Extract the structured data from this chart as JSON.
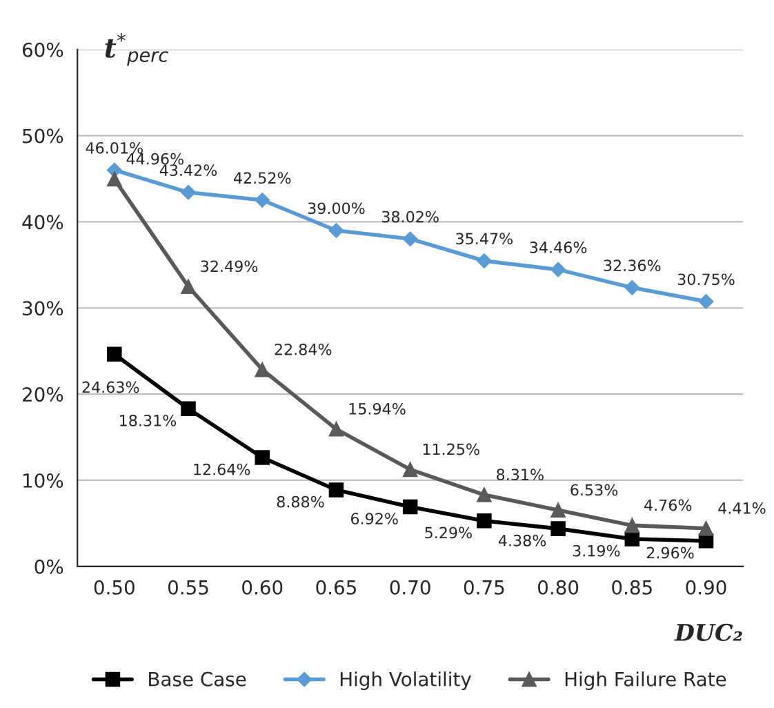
{
  "chart_data": {
    "type": "line",
    "title": "t$^{*}$$_{perc}$",
    "xlabel": "DUC₂",
    "categories": [
      "0.50",
      "0.55",
      "0.60",
      "0.65",
      "0.70",
      "0.75",
      "0.80",
      "0.85",
      "0.90"
    ],
    "series": [
      {
        "name": "Base Case",
        "color": "#000000",
        "marker": "square",
        "values": [
          24.63,
          18.31,
          12.64,
          8.88,
          6.92,
          5.29,
          4.38,
          3.19,
          2.96
        ],
        "value_labels": [
          "24.63%",
          "18.31%",
          "12.64%",
          "8.88%",
          "6.92%",
          "5.29%",
          "4.38%",
          "3.19%",
          "2.96%"
        ]
      },
      {
        "name": "High Volatility",
        "color": "#5b9bd5",
        "marker": "diamond",
        "values": [
          46.01,
          43.42,
          42.52,
          39.0,
          38.02,
          35.47,
          34.46,
          32.36,
          30.75
        ],
        "value_labels": [
          "46.01%",
          "43.42%",
          "42.52%",
          "39.00%",
          "38.02%",
          "35.47%",
          "34.46%",
          "32.36%",
          "30.75%"
        ]
      },
      {
        "name": "High Failure Rate",
        "color": "#595959",
        "marker": "triangle",
        "values": [
          44.96,
          32.49,
          22.84,
          15.94,
          11.25,
          8.31,
          6.53,
          4.76,
          4.41
        ],
        "value_labels": [
          "44.96%",
          "32.49%",
          "22.84%",
          "15.94%",
          "11.25%",
          "8.31%",
          "6.53%",
          "4.76%",
          "4.41%"
        ]
      }
    ],
    "ylim": [
      0,
      60
    ],
    "yticks": [
      {
        "value": 0,
        "label": "0%"
      },
      {
        "value": 10,
        "label": "10%"
      },
      {
        "value": 20,
        "label": "20%"
      },
      {
        "value": 30,
        "label": "30%"
      },
      {
        "value": 40,
        "label": "40%"
      },
      {
        "value": 50,
        "label": "50%"
      },
      {
        "value": 60,
        "label": "60%"
      }
    ],
    "grid": "y",
    "legend": "bottom",
    "line_style": "solid"
  }
}
